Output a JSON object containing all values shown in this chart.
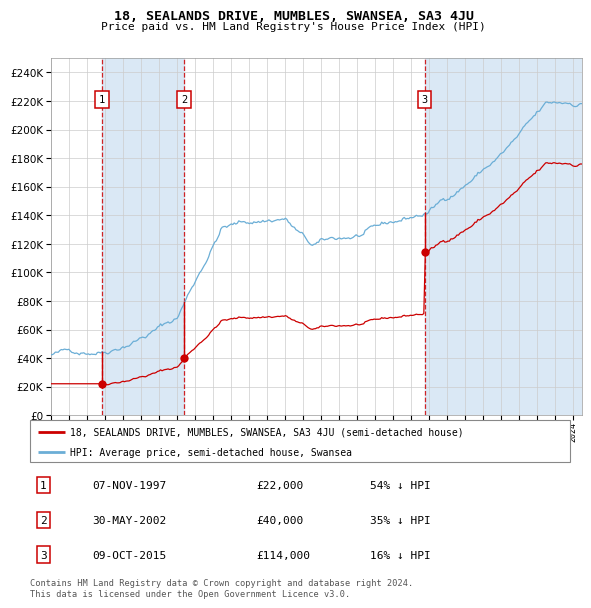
{
  "title": "18, SEALANDS DRIVE, MUMBLES, SWANSEA, SA3 4JU",
  "subtitle": "Price paid vs. HM Land Registry's House Price Index (HPI)",
  "sales": [
    {
      "date_num": 1997.854,
      "price": 22000,
      "label": "1",
      "date_str": "07-NOV-1997",
      "hpi_pct": "54% ↓ HPI"
    },
    {
      "date_num": 2002.413,
      "price": 40000,
      "label": "2",
      "date_str": "30-MAY-2002",
      "hpi_pct": "35% ↓ HPI"
    },
    {
      "date_num": 2015.771,
      "price": 114000,
      "label": "3",
      "date_str": "09-OCT-2015",
      "hpi_pct": "16% ↓ HPI"
    }
  ],
  "ylim": [
    0,
    250000
  ],
  "xlim_start": 1995.0,
  "xlim_end": 2024.5,
  "hpi_color": "#6baed6",
  "sale_color": "#cc0000",
  "shade_color": "#dae8f5",
  "plot_bg": "#ffffff",
  "grid_color": "#cccccc",
  "legend_label_red": "18, SEALANDS DRIVE, MUMBLES, SWANSEA, SA3 4JU (semi-detached house)",
  "legend_label_blue": "HPI: Average price, semi-detached house, Swansea",
  "footnote": "Contains HM Land Registry data © Crown copyright and database right 2024.\nThis data is licensed under the Open Government Licence v3.0.",
  "table_rows": [
    [
      "1",
      "07-NOV-1997",
      "£22,000",
      "54% ↓ HPI"
    ],
    [
      "2",
      "30-MAY-2002",
      "£40,000",
      "35% ↓ HPI"
    ],
    [
      "3",
      "09-OCT-2015",
      "£114,000",
      "16% ↓ HPI"
    ]
  ]
}
